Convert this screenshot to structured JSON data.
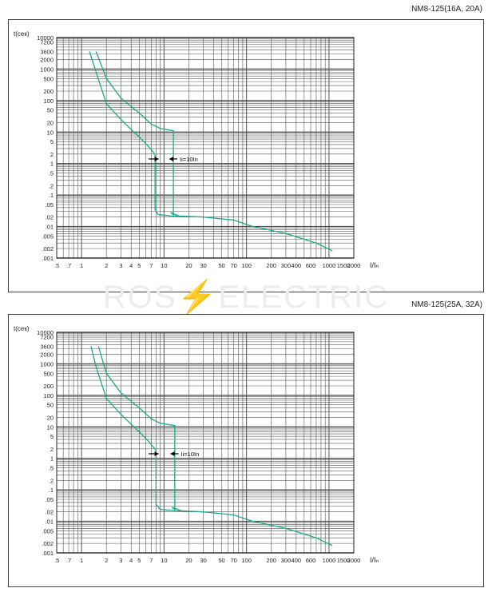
{
  "watermark": {
    "left": "ROS",
    "bolt": "⚡",
    "right": "ELECTRIC"
  },
  "chart_data": [
    {
      "type": "line",
      "title": "NM8-125(16A, 20A)",
      "xlabel": "I/Iₙ",
      "ylabel": "t(сек)",
      "x_scale": "log",
      "y_scale": "log",
      "xlim": [
        0.5,
        2000
      ],
      "ylim": [
        0.001,
        10000
      ],
      "grid": true,
      "x_ticks": [
        {
          "v": 0.5,
          "l": ".5"
        },
        {
          "v": 0.7,
          "l": ".7"
        },
        {
          "v": 1,
          "l": "1"
        },
        {
          "v": 2,
          "l": "2"
        },
        {
          "v": 3,
          "l": "3"
        },
        {
          "v": 4,
          "l": "4"
        },
        {
          "v": 5,
          "l": "5"
        },
        {
          "v": 7,
          "l": "7"
        },
        {
          "v": 10,
          "l": "10"
        },
        {
          "v": 20,
          "l": "20"
        },
        {
          "v": 30,
          "l": "30"
        },
        {
          "v": 50,
          "l": "50"
        },
        {
          "v": 70,
          "l": "70"
        },
        {
          "v": 100,
          "l": "100"
        },
        {
          "v": 200,
          "l": "200"
        },
        {
          "v": 300,
          "l": "300"
        },
        {
          "v": 400,
          "l": "400"
        },
        {
          "v": 600,
          "l": "600"
        },
        {
          "v": 1000,
          "l": "1000"
        },
        {
          "v": 1500,
          "l": "1500"
        },
        {
          "v": 2000,
          "l": "2000"
        }
      ],
      "y_ticks": [
        {
          "v": 10000,
          "l": "10000"
        },
        {
          "v": 7200,
          "l": "7200"
        },
        {
          "v": 3600,
          "l": "3600"
        },
        {
          "v": 2000,
          "l": "2000"
        },
        {
          "v": 1000,
          "l": "1000"
        },
        {
          "v": 500,
          "l": "500"
        },
        {
          "v": 200,
          "l": "200"
        },
        {
          "v": 100,
          "l": "100"
        },
        {
          "v": 50,
          "l": "50"
        },
        {
          "v": 20,
          "l": "20"
        },
        {
          "v": 10,
          "l": "10"
        },
        {
          "v": 5,
          "l": "5"
        },
        {
          "v": 2,
          "l": "2"
        },
        {
          "v": 1,
          "l": "1"
        },
        {
          "v": 0.5,
          "l": ".5"
        },
        {
          "v": 0.2,
          "l": ".2"
        },
        {
          "v": 0.1,
          "l": ".1"
        },
        {
          "v": 0.05,
          "l": ".05"
        },
        {
          "v": 0.02,
          "l": ".02"
        },
        {
          "v": 0.01,
          "l": ".01"
        },
        {
          "v": 0.005,
          "l": ".005"
        },
        {
          "v": 0.002,
          "l": ".002"
        },
        {
          "v": 0.001,
          "l": ".001"
        }
      ],
      "series": [
        {
          "x": [
            1.25,
            1.5,
            2,
            3,
            4,
            5,
            6.5,
            7.5,
            7.8,
            7.8,
            8.5,
            12,
            30,
            70,
            120,
            300,
            700,
            1100
          ],
          "y": [
            3600,
            800,
            80,
            25,
            12,
            7,
            3.5,
            2.2,
            1.8,
            0.035,
            0.024,
            0.022,
            0.02,
            0.016,
            0.01,
            0.006,
            0.003,
            0.0017
          ]
        },
        {
          "x": [
            1.5,
            2,
            3,
            5,
            7,
            9,
            13,
            13,
            12,
            15
          ],
          "y": [
            3600,
            500,
            120,
            40,
            18,
            13,
            11,
            0.024,
            0.028,
            0.022
          ]
        }
      ],
      "annotation": {
        "label": "Ii=10In",
        "arrow_from_x": 6.5,
        "arrow_to_x": 8.6,
        "arrow_left_from_x": 14.5,
        "arrow_left_to_x": 11.6,
        "y": 1.4
      }
    },
    {
      "type": "line",
      "title": "NM8-125(25A, 32A)",
      "xlabel": "I/Iₙ",
      "ylabel": "t(сек)",
      "x_scale": "log",
      "y_scale": "log",
      "xlim": [
        0.5,
        2000
      ],
      "ylim": [
        0.001,
        10000
      ],
      "grid": true,
      "x_ticks": [
        {
          "v": 0.5,
          "l": ".5"
        },
        {
          "v": 0.7,
          "l": ".7"
        },
        {
          "v": 1,
          "l": "1"
        },
        {
          "v": 2,
          "l": "2"
        },
        {
          "v": 3,
          "l": "3"
        },
        {
          "v": 4,
          "l": "4"
        },
        {
          "v": 5,
          "l": "5"
        },
        {
          "v": 7,
          "l": "7"
        },
        {
          "v": 10,
          "l": "10"
        },
        {
          "v": 20,
          "l": "20"
        },
        {
          "v": 30,
          "l": "30"
        },
        {
          "v": 50,
          "l": "50"
        },
        {
          "v": 70,
          "l": "70"
        },
        {
          "v": 100,
          "l": "100"
        },
        {
          "v": 200,
          "l": "200"
        },
        {
          "v": 300,
          "l": "300"
        },
        {
          "v": 400,
          "l": "400"
        },
        {
          "v": 600,
          "l": "600"
        },
        {
          "v": 1000,
          "l": "1000"
        },
        {
          "v": 1500,
          "l": "1500"
        },
        {
          "v": 2000,
          "l": "2000"
        }
      ],
      "y_ticks": [
        {
          "v": 10000,
          "l": "10000"
        },
        {
          "v": 7200,
          "l": "7200"
        },
        {
          "v": 3600,
          "l": "3600"
        },
        {
          "v": 2000,
          "l": "2000"
        },
        {
          "v": 1000,
          "l": "1000"
        },
        {
          "v": 500,
          "l": "500"
        },
        {
          "v": 200,
          "l": "200"
        },
        {
          "v": 100,
          "l": "100"
        },
        {
          "v": 50,
          "l": "50"
        },
        {
          "v": 20,
          "l": "20"
        },
        {
          "v": 10,
          "l": "10"
        },
        {
          "v": 5,
          "l": "5"
        },
        {
          "v": 2,
          "l": "2"
        },
        {
          "v": 1,
          "l": "1"
        },
        {
          "v": 0.5,
          "l": ".5"
        },
        {
          "v": 0.2,
          "l": ".2"
        },
        {
          "v": 0.1,
          "l": ".1"
        },
        {
          "v": 0.05,
          "l": ".05"
        },
        {
          "v": 0.02,
          "l": ".02"
        },
        {
          "v": 0.01,
          "l": ".01"
        },
        {
          "v": 0.005,
          "l": ".005"
        },
        {
          "v": 0.002,
          "l": ".002"
        },
        {
          "v": 0.001,
          "l": ".001"
        }
      ],
      "series": [
        {
          "x": [
            1.3,
            1.5,
            2,
            3,
            4,
            5,
            6.5,
            7.5,
            8,
            8,
            9,
            14,
            30,
            70,
            120,
            300,
            700,
            1100
          ],
          "y": [
            3600,
            800,
            80,
            25,
            12,
            7,
            3.5,
            2.2,
            1.8,
            0.035,
            0.024,
            0.022,
            0.02,
            0.016,
            0.01,
            0.006,
            0.003,
            0.0017
          ]
        },
        {
          "x": [
            1.6,
            2,
            3,
            5,
            7,
            9,
            13.5,
            13.5,
            12.5,
            16
          ],
          "y": [
            3600,
            500,
            120,
            40,
            18,
            13,
            11,
            0.024,
            0.028,
            0.022
          ]
        }
      ],
      "annotation": {
        "label": "Ii=10In",
        "arrow_from_x": 6.5,
        "arrow_to_x": 8.6,
        "arrow_left_from_x": 15,
        "arrow_left_to_x": 12,
        "y": 1.4
      }
    }
  ],
  "colors": {
    "curve": "#1aa98a",
    "grid": "#555555",
    "axis": "#222222"
  }
}
